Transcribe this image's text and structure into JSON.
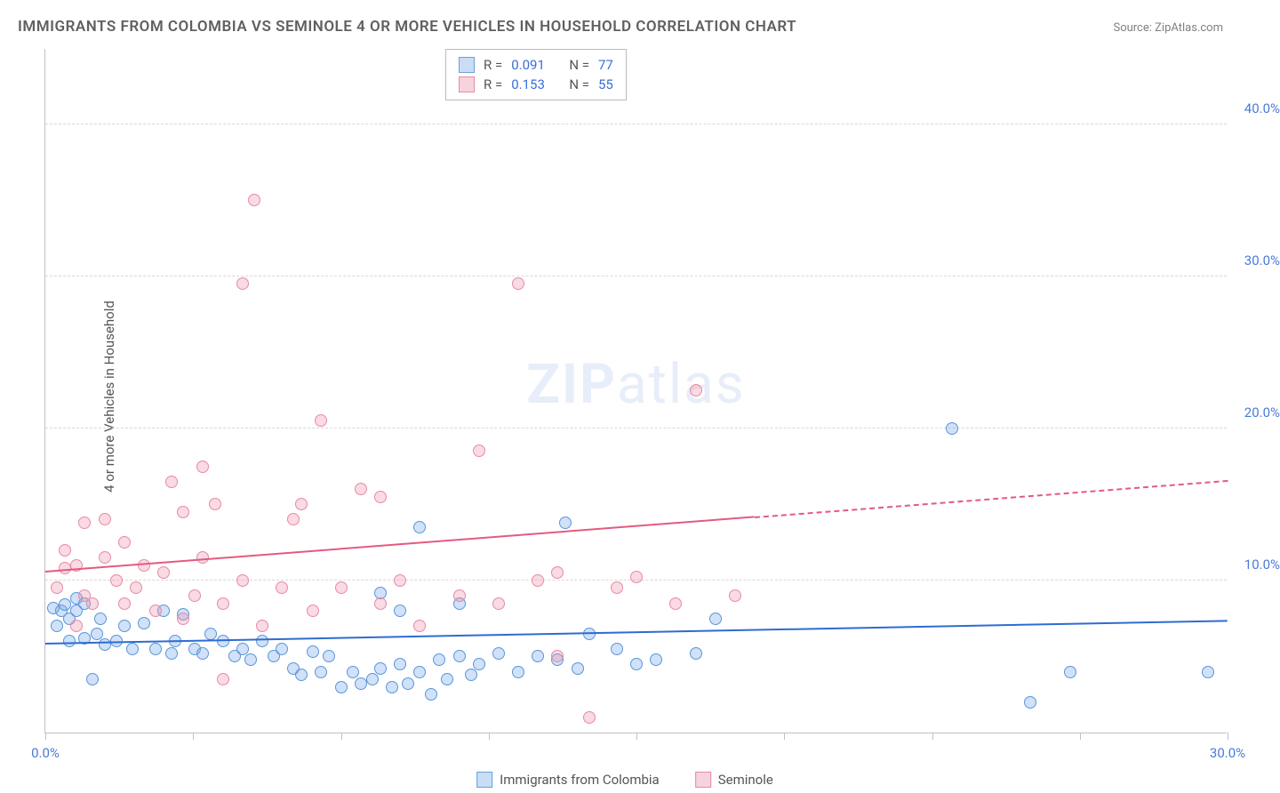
{
  "title": "IMMIGRANTS FROM COLOMBIA VS SEMINOLE 4 OR MORE VEHICLES IN HOUSEHOLD CORRELATION CHART",
  "source": "Source: ZipAtlas.com",
  "watermark": {
    "bold": "ZIP",
    "rest": "atlas"
  },
  "ylabel": "4 or more Vehicles in Household",
  "chart": {
    "type": "scatter",
    "xlim": [
      0,
      30
    ],
    "ylim": [
      0,
      45
    ],
    "xticks": [
      0,
      3.75,
      7.5,
      11.25,
      15,
      18.75,
      22.5,
      26.25,
      30
    ],
    "xtick_labels": {
      "0": "0.0%",
      "30": "30.0%"
    },
    "yticks": [
      10,
      20,
      30,
      40
    ],
    "ytick_labels": [
      "10.0%",
      "20.0%",
      "30.0%",
      "40.0%"
    ],
    "background_color": "#ffffff",
    "grid_color": "#d8d8d8",
    "axis_color": "#c0c0c0",
    "label_color": "#4a7bd8",
    "marker_radius": 7,
    "marker_stroke_width": 1
  },
  "series": [
    {
      "name": "Immigrants from Colombia",
      "fill": "rgba(120,170,235,0.35)",
      "stroke": "#5a96d8",
      "swatch_fill": "#c9ddf4",
      "swatch_stroke": "#6aa0dd",
      "trend_color": "#2e6cd0",
      "R": "0.091",
      "N": "77",
      "trend": {
        "x1": 0,
        "y1": 5.8,
        "x2": 30,
        "y2": 7.3,
        "solid_end": 30
      },
      "points": [
        [
          0.2,
          8.2
        ],
        [
          0.3,
          7.0
        ],
        [
          0.4,
          8.0
        ],
        [
          0.5,
          8.4
        ],
        [
          0.6,
          7.5
        ],
        [
          0.6,
          6.0
        ],
        [
          0.8,
          8.0
        ],
        [
          0.8,
          8.8
        ],
        [
          1.0,
          6.2
        ],
        [
          1.0,
          8.5
        ],
        [
          1.2,
          3.5
        ],
        [
          1.3,
          6.5
        ],
        [
          1.4,
          7.5
        ],
        [
          1.5,
          5.8
        ],
        [
          1.8,
          6.0
        ],
        [
          2.0,
          7.0
        ],
        [
          2.2,
          5.5
        ],
        [
          2.5,
          7.2
        ],
        [
          2.8,
          5.5
        ],
        [
          3.0,
          8.0
        ],
        [
          3.2,
          5.2
        ],
        [
          3.3,
          6.0
        ],
        [
          3.5,
          7.8
        ],
        [
          3.8,
          5.5
        ],
        [
          4.0,
          5.2
        ],
        [
          4.2,
          6.5
        ],
        [
          4.5,
          6.0
        ],
        [
          4.8,
          5.0
        ],
        [
          5.0,
          5.5
        ],
        [
          5.2,
          4.8
        ],
        [
          5.5,
          6.0
        ],
        [
          5.8,
          5.0
        ],
        [
          6.0,
          5.5
        ],
        [
          6.3,
          4.2
        ],
        [
          6.5,
          3.8
        ],
        [
          6.8,
          5.3
        ],
        [
          7.0,
          4.0
        ],
        [
          7.2,
          5.0
        ],
        [
          7.5,
          3.0
        ],
        [
          7.8,
          4.0
        ],
        [
          8.0,
          3.2
        ],
        [
          8.3,
          3.5
        ],
        [
          8.5,
          4.2
        ],
        [
          8.5,
          9.2
        ],
        [
          8.8,
          3.0
        ],
        [
          9.0,
          4.5
        ],
        [
          9.0,
          8.0
        ],
        [
          9.2,
          3.2
        ],
        [
          9.5,
          4.0
        ],
        [
          9.5,
          13.5
        ],
        [
          9.8,
          2.5
        ],
        [
          10.0,
          4.8
        ],
        [
          10.2,
          3.5
        ],
        [
          10.5,
          5.0
        ],
        [
          10.5,
          8.5
        ],
        [
          10.8,
          3.8
        ],
        [
          11.0,
          4.5
        ],
        [
          11.5,
          5.2
        ],
        [
          12.0,
          4.0
        ],
        [
          12.5,
          5.0
        ],
        [
          13.0,
          4.8
        ],
        [
          13.2,
          13.8
        ],
        [
          13.5,
          4.2
        ],
        [
          13.8,
          6.5
        ],
        [
          14.5,
          5.5
        ],
        [
          15.0,
          4.5
        ],
        [
          15.5,
          4.8
        ],
        [
          16.5,
          5.2
        ],
        [
          17.0,
          7.5
        ],
        [
          23.0,
          20.0
        ],
        [
          25.0,
          2.0
        ],
        [
          26.0,
          4.0
        ],
        [
          29.5,
          4.0
        ]
      ]
    },
    {
      "name": "Seminole",
      "fill": "rgba(240,150,175,0.35)",
      "stroke": "#e68aa4",
      "swatch_fill": "#f6d4de",
      "swatch_stroke": "#e68aa4",
      "trend_color": "#e45a7f",
      "R": "0.153",
      "N": "55",
      "trend": {
        "x1": 0,
        "y1": 10.5,
        "x2": 30,
        "y2": 16.5,
        "solid_end": 18
      },
      "points": [
        [
          0.3,
          9.5
        ],
        [
          0.5,
          10.8
        ],
        [
          0.5,
          12.0
        ],
        [
          0.8,
          11.0
        ],
        [
          0.8,
          7.0
        ],
        [
          1.0,
          9.0
        ],
        [
          1.0,
          13.8
        ],
        [
          1.2,
          8.5
        ],
        [
          1.5,
          11.5
        ],
        [
          1.5,
          14.0
        ],
        [
          1.8,
          10.0
        ],
        [
          2.0,
          8.5
        ],
        [
          2.0,
          12.5
        ],
        [
          2.3,
          9.5
        ],
        [
          2.5,
          11.0
        ],
        [
          2.8,
          8.0
        ],
        [
          3.0,
          10.5
        ],
        [
          3.2,
          16.5
        ],
        [
          3.5,
          7.5
        ],
        [
          3.5,
          14.5
        ],
        [
          3.8,
          9.0
        ],
        [
          4.0,
          17.5
        ],
        [
          4.0,
          11.5
        ],
        [
          4.3,
          15.0
        ],
        [
          4.5,
          8.5
        ],
        [
          4.5,
          3.5
        ],
        [
          5.0,
          10.0
        ],
        [
          5.0,
          29.5
        ],
        [
          5.3,
          35.0
        ],
        [
          5.5,
          7.0
        ],
        [
          6.0,
          9.5
        ],
        [
          6.3,
          14.0
        ],
        [
          6.5,
          15.0
        ],
        [
          6.8,
          8.0
        ],
        [
          7.0,
          20.5
        ],
        [
          7.5,
          9.5
        ],
        [
          8.0,
          16.0
        ],
        [
          8.5,
          15.5
        ],
        [
          8.5,
          8.5
        ],
        [
          9.0,
          10.0
        ],
        [
          9.5,
          7.0
        ],
        [
          10.5,
          9.0
        ],
        [
          11.0,
          18.5
        ],
        [
          11.5,
          8.5
        ],
        [
          12.0,
          29.5
        ],
        [
          12.5,
          10.0
        ],
        [
          13.0,
          5.0
        ],
        [
          13.0,
          10.5
        ],
        [
          13.8,
          1.0
        ],
        [
          14.5,
          9.5
        ],
        [
          15.0,
          10.2
        ],
        [
          16.0,
          8.5
        ],
        [
          16.5,
          22.5
        ],
        [
          17.5,
          9.0
        ]
      ]
    }
  ],
  "legend_labels": {
    "series_a": "Immigrants from Colombia",
    "series_b": "Seminole",
    "R_label": "R =",
    "N_label": "N ="
  }
}
